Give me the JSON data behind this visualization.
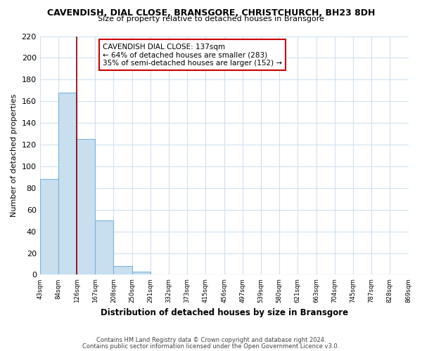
{
  "title": "CAVENDISH, DIAL CLOSE, BRANSGORE, CHRISTCHURCH, BH23 8DH",
  "subtitle": "Size of property relative to detached houses in Bransgore",
  "xlabel": "Distribution of detached houses by size in Bransgore",
  "ylabel": "Number of detached properties",
  "bar_values": [
    88,
    168,
    125,
    50,
    8,
    3,
    0,
    0,
    0,
    0,
    0,
    0,
    0,
    0,
    0,
    0,
    0,
    0,
    0,
    0
  ],
  "bar_color": "#c8dff0",
  "bar_edge_color": "#7ab4d8",
  "x_labels": [
    "43sqm",
    "84sqm",
    "126sqm",
    "167sqm",
    "208sqm",
    "250sqm",
    "291sqm",
    "332sqm",
    "373sqm",
    "415sqm",
    "456sqm",
    "497sqm",
    "539sqm",
    "580sqm",
    "621sqm",
    "663sqm",
    "704sqm",
    "745sqm",
    "787sqm",
    "828sqm",
    "869sqm"
  ],
  "ylim": [
    0,
    220
  ],
  "yticks": [
    0,
    20,
    40,
    60,
    80,
    100,
    120,
    140,
    160,
    180,
    200,
    220
  ],
  "red_line_bar_index": 2,
  "annotation_title": "CAVENDISH DIAL CLOSE: 137sqm",
  "annotation_line1": "← 64% of detached houses are smaller (283)",
  "annotation_line2": "35% of semi-detached houses are larger (152) →",
  "footer_line1": "Contains HM Land Registry data © Crown copyright and database right 2024.",
  "footer_line2": "Contains public sector information licensed under the Open Government Licence v3.0.",
  "background_color": "#ffffff",
  "grid_color": "#cfe0ef"
}
